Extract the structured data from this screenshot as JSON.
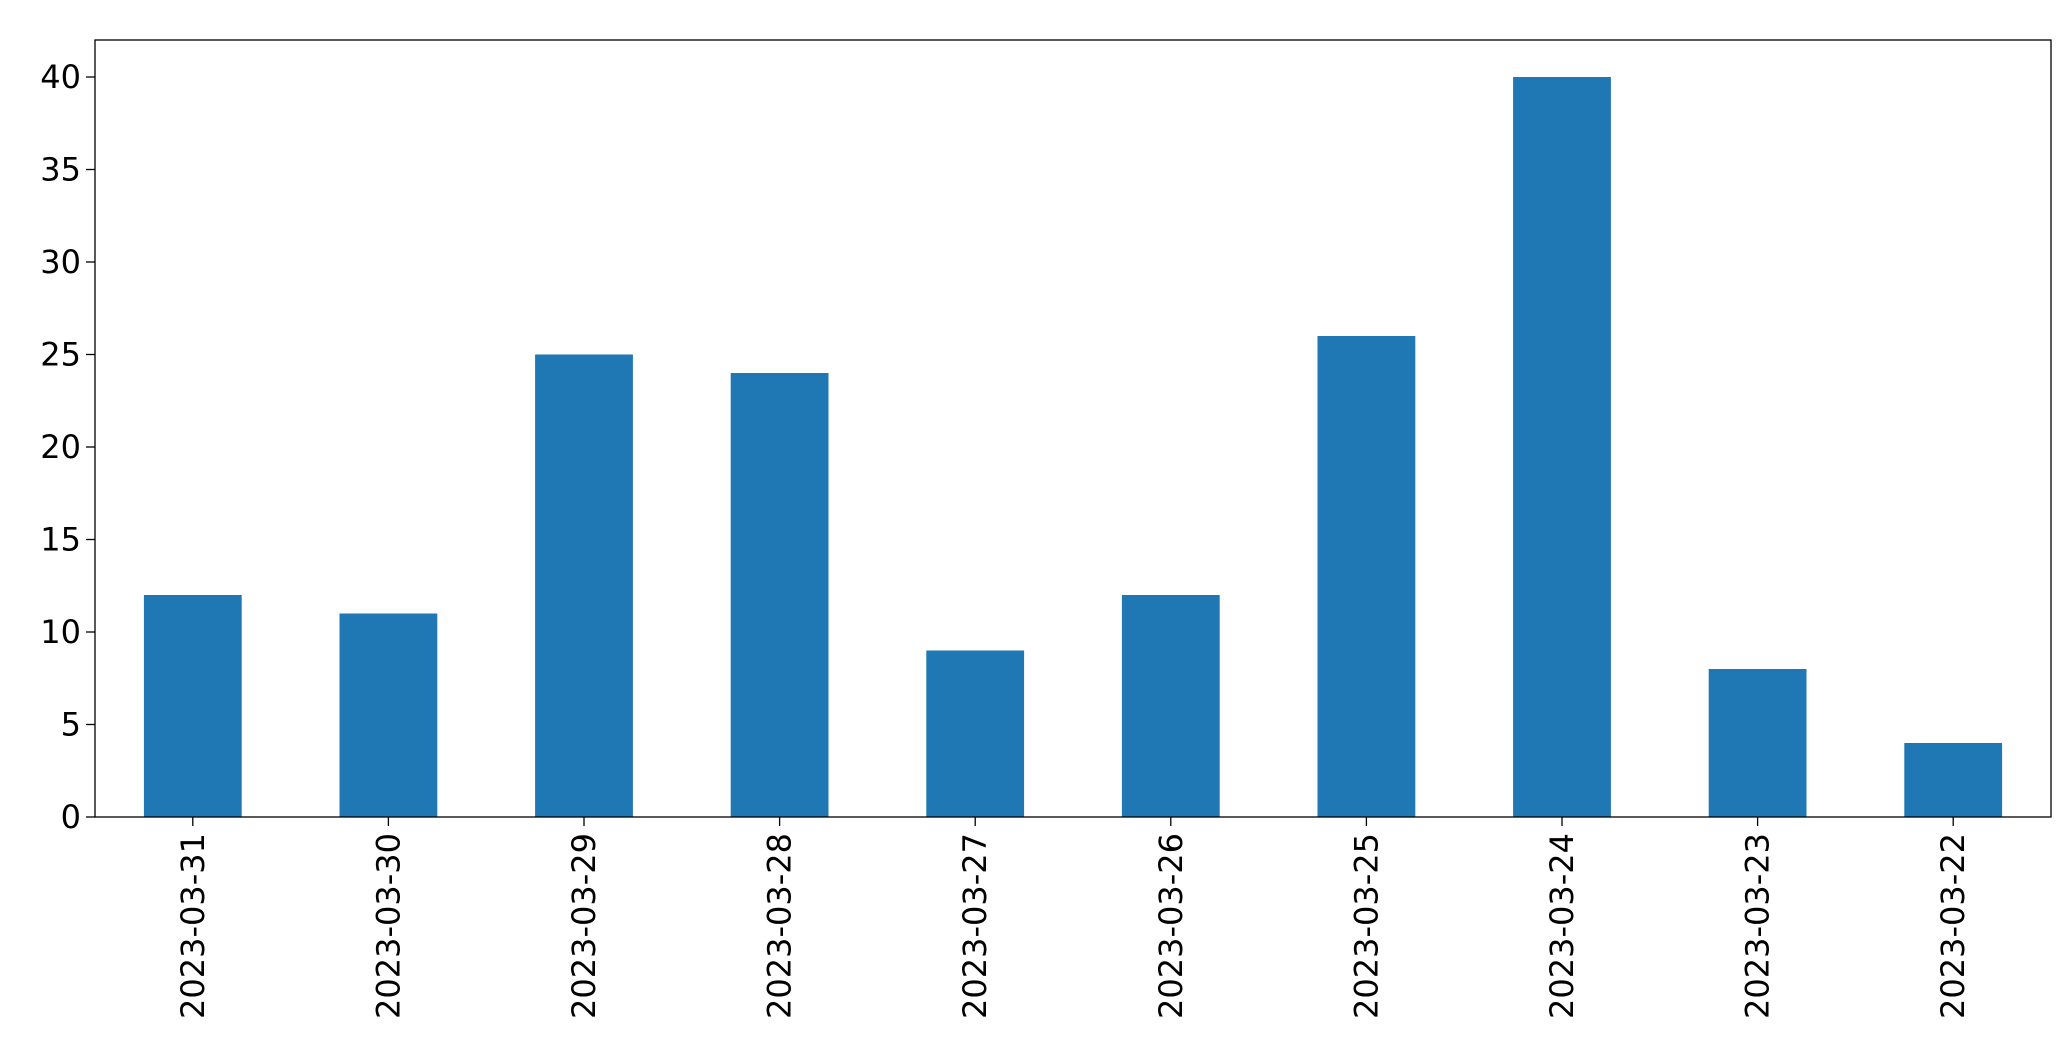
{
  "chart_data": {
    "type": "bar",
    "categories": [
      "2023-03-31",
      "2023-03-30",
      "2023-03-29",
      "2023-03-28",
      "2023-03-27",
      "2023-03-26",
      "2023-03-25",
      "2023-03-24",
      "2023-03-23",
      "2023-03-22"
    ],
    "values": [
      12,
      11,
      25,
      24,
      9,
      12,
      26,
      40,
      8,
      4
    ],
    "color": "#1f77b4",
    "ylim": [
      0,
      42
    ],
    "yticks": [
      0,
      5,
      10,
      15,
      20,
      25,
      30,
      35,
      40
    ],
    "grid": false
  }
}
